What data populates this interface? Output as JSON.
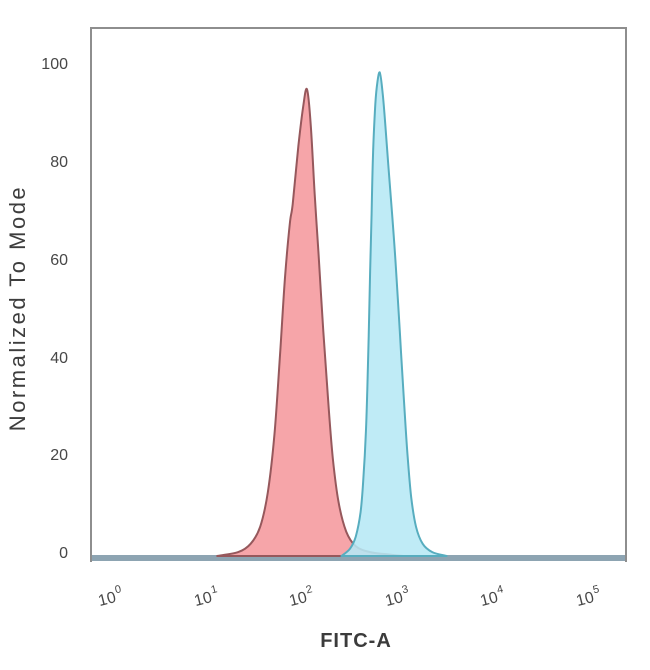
{
  "chart_data": {
    "type": "area",
    "title": "",
    "xlabel": "FITC-A",
    "ylabel": "Normalized To Mode",
    "x_scale": "log10",
    "x_tick_base": "10",
    "x_tick_exponents": [
      0,
      1,
      2,
      3,
      4,
      5
    ],
    "y_ticks": [
      0,
      20,
      40,
      60,
      80,
      100
    ],
    "xlim_log10": [
      -0.21,
      5.37
    ],
    "ylim": [
      0,
      108
    ],
    "grid": false,
    "legend": "none",
    "colors": {
      "axis_baseline": "#8da4b2",
      "plot_border": "#8e8e8e",
      "tick_label": "#474747",
      "axis_title": "#3b3b3b"
    },
    "series": [
      {
        "name": "red-peak",
        "peak_x_value": 110,
        "peak_height": 95,
        "fill": "#f59ba0",
        "fill_opacity": 0.9,
        "stroke": "#96585c",
        "points_log10x_y": [
          [
            1.1,
            0
          ],
          [
            1.32,
            0.8
          ],
          [
            1.45,
            2.5
          ],
          [
            1.55,
            6
          ],
          [
            1.63,
            13
          ],
          [
            1.7,
            25
          ],
          [
            1.76,
            42
          ],
          [
            1.81,
            57
          ],
          [
            1.86,
            68
          ],
          [
            1.89,
            72
          ],
          [
            1.95,
            84
          ],
          [
            2.0,
            92
          ],
          [
            2.04,
            95.5
          ],
          [
            2.08,
            88
          ],
          [
            2.12,
            74
          ],
          [
            2.16,
            62
          ],
          [
            2.21,
            46
          ],
          [
            2.26,
            32
          ],
          [
            2.31,
            20
          ],
          [
            2.37,
            11
          ],
          [
            2.45,
            5
          ],
          [
            2.55,
            2
          ],
          [
            2.7,
            0.8
          ],
          [
            2.9,
            0.3
          ],
          [
            3.05,
            0
          ]
        ]
      },
      {
        "name": "cyan-peak",
        "peak_x_value": 630,
        "peak_height": 99,
        "fill": "#b6e8f5",
        "fill_opacity": 0.88,
        "stroke": "#57adbf",
        "points_log10x_y": [
          [
            2.4,
            0
          ],
          [
            2.49,
            1.5
          ],
          [
            2.55,
            4
          ],
          [
            2.6,
            9
          ],
          [
            2.63,
            16
          ],
          [
            2.655,
            25
          ],
          [
            2.67,
            34
          ],
          [
            2.685,
            45
          ],
          [
            2.7,
            58
          ],
          [
            2.715,
            70
          ],
          [
            2.73,
            82
          ],
          [
            2.75,
            91
          ],
          [
            2.77,
            96
          ],
          [
            2.8,
            99
          ],
          [
            2.83,
            95
          ],
          [
            2.86,
            88
          ],
          [
            2.89,
            80
          ],
          [
            2.93,
            70
          ],
          [
            2.97,
            59
          ],
          [
            3.01,
            46
          ],
          [
            3.05,
            33
          ],
          [
            3.09,
            21
          ],
          [
            3.13,
            12
          ],
          [
            3.18,
            6
          ],
          [
            3.25,
            2.5
          ],
          [
            3.35,
            0.8
          ],
          [
            3.5,
            0
          ]
        ]
      }
    ]
  }
}
